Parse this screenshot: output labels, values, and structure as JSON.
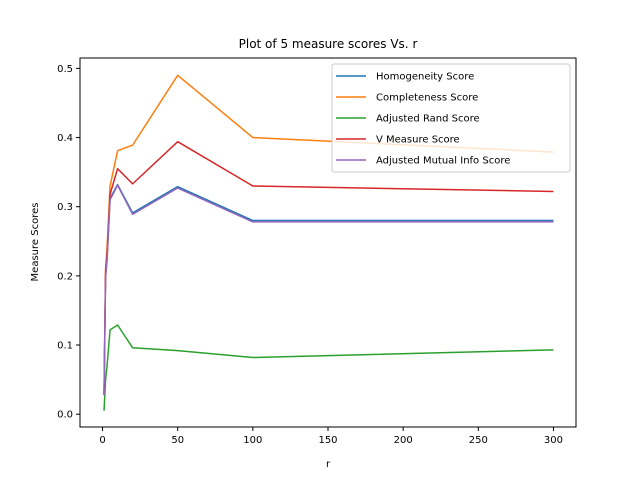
{
  "chart_data": {
    "type": "line",
    "title": "Plot of 5 measure scores Vs. r",
    "xlabel": "r",
    "ylabel": "Measure Scores",
    "x": [
      1,
      2,
      3,
      5,
      10,
      20,
      50,
      100,
      300
    ],
    "xlim": [
      -15,
      315
    ],
    "ylim": [
      -0.0185,
      0.515
    ],
    "xticks": [
      0,
      50,
      100,
      150,
      200,
      250,
      300
    ],
    "yticks": [
      0.0,
      0.1,
      0.2,
      0.3,
      0.4,
      0.5
    ],
    "xtick_labels": [
      "0",
      "50",
      "100",
      "150",
      "200",
      "250",
      "300"
    ],
    "ytick_labels": [
      "0.0",
      "0.1",
      "0.2",
      "0.3",
      "0.4",
      "0.5"
    ],
    "legend_position": "top-right",
    "grid": false,
    "series": [
      {
        "name": "Homogeneity Score",
        "color": "#1f77b4",
        "values": [
          0.028,
          0.2,
          0.225,
          0.312,
          0.332,
          0.291,
          0.329,
          0.28,
          0.28
        ]
      },
      {
        "name": "Completeness Score",
        "color": "#ff7f0e",
        "values": [
          0.03,
          0.21,
          0.24,
          0.33,
          0.381,
          0.389,
          0.49,
          0.4,
          0.379
        ]
      },
      {
        "name": "Adjusted Rand Score",
        "color": "#2ca02c",
        "values": [
          0.005,
          0.05,
          0.07,
          0.122,
          0.129,
          0.096,
          0.092,
          0.082,
          0.093
        ]
      },
      {
        "name": "V Measure Score",
        "color": "#d62728",
        "values": [
          0.029,
          0.205,
          0.232,
          0.318,
          0.355,
          0.333,
          0.394,
          0.33,
          0.322
        ]
      },
      {
        "name": "Adjusted Mutual Info Score",
        "color": "#9467bd",
        "values": [
          0.027,
          0.198,
          0.222,
          0.31,
          0.331,
          0.289,
          0.327,
          0.278,
          0.278
        ]
      }
    ]
  }
}
